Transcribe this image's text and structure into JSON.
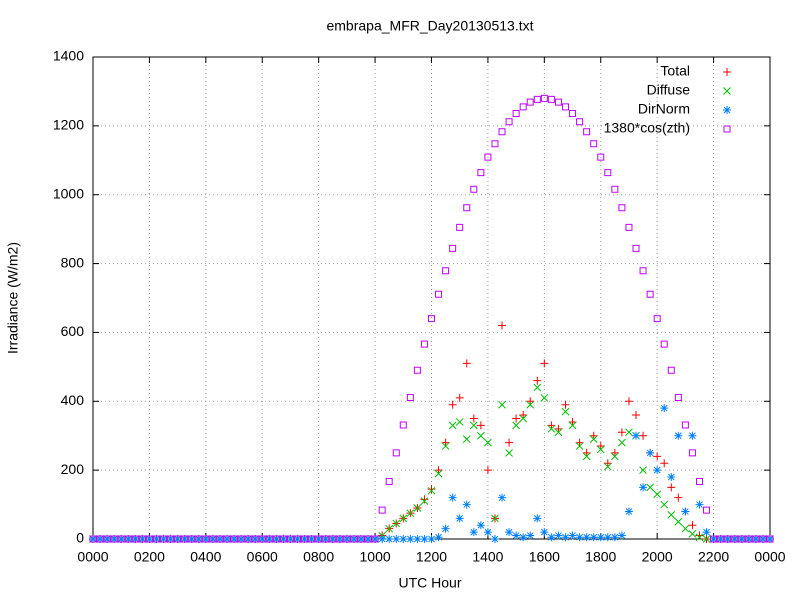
{
  "chart_data": {
    "type": "scatter",
    "title": "embrapa_MFR_Day20130513.txt",
    "x_label": "UTC Hour",
    "y_label": "Irradiance (W/m2)",
    "xlim": [
      0,
      24
    ],
    "ylim": [
      0,
      1400
    ],
    "xticks": [
      {
        "value": 0,
        "label": "0000"
      },
      {
        "value": 2,
        "label": "0200"
      },
      {
        "value": 4,
        "label": "0400"
      },
      {
        "value": 6,
        "label": "0600"
      },
      {
        "value": 8,
        "label": "0800"
      },
      {
        "value": 10,
        "label": "1000"
      },
      {
        "value": 12,
        "label": "1200"
      },
      {
        "value": 14,
        "label": "1400"
      },
      {
        "value": 16,
        "label": "1600"
      },
      {
        "value": 18,
        "label": "1800"
      },
      {
        "value": 20,
        "label": "2000"
      },
      {
        "value": 22,
        "label": "2200"
      },
      {
        "value": 24,
        "label": "0000"
      }
    ],
    "yticks": [
      0,
      200,
      400,
      600,
      800,
      1000,
      1200,
      1400
    ],
    "grid": true,
    "legend": "top-right",
    "x": [
      0,
      0.25,
      0.5,
      0.75,
      1,
      1.25,
      1.5,
      1.75,
      2,
      2.25,
      2.5,
      2.75,
      3,
      3.25,
      3.5,
      3.75,
      4,
      4.25,
      4.5,
      4.75,
      5,
      5.25,
      5.5,
      5.75,
      6,
      6.25,
      6.5,
      6.75,
      7,
      7.25,
      7.5,
      7.75,
      8,
      8.25,
      8.5,
      8.75,
      9,
      9.25,
      9.5,
      9.75,
      10,
      10.25,
      10.5,
      10.75,
      11,
      11.25,
      11.5,
      11.75,
      12,
      12.25,
      12.5,
      12.75,
      13,
      13.25,
      13.5,
      13.75,
      14,
      14.25,
      14.5,
      14.75,
      15,
      15.25,
      15.5,
      15.75,
      16,
      16.25,
      16.5,
      16.75,
      17,
      17.25,
      17.5,
      17.75,
      18,
      18.25,
      18.5,
      18.75,
      19,
      19.25,
      19.5,
      19.75,
      20,
      20.25,
      20.5,
      20.75,
      21,
      21.25,
      21.5,
      21.75,
      22,
      22.25,
      22.5,
      22.75,
      23,
      23.25,
      23.5,
      23.75,
      24
    ],
    "series": [
      {
        "name": "Total",
        "color": "#ff0000",
        "marker": "plus",
        "values": [
          0,
          0,
          0,
          0,
          0,
          0,
          0,
          0,
          0,
          0,
          0,
          0,
          0,
          0,
          0,
          0,
          0,
          0,
          0,
          0,
          0,
          0,
          0,
          0,
          0,
          0,
          0,
          0,
          0,
          0,
          0,
          0,
          0,
          0,
          0,
          0,
          0,
          0,
          0,
          0,
          0,
          10,
          30,
          45,
          60,
          75,
          90,
          115,
          145,
          200,
          280,
          390,
          410,
          510,
          350,
          330,
          200,
          60,
          620,
          280,
          350,
          360,
          400,
          460,
          510,
          330,
          320,
          390,
          340,
          280,
          250,
          300,
          270,
          220,
          250,
          310,
          400,
          360,
          300,
          250,
          240,
          220,
          150,
          120,
          80,
          40,
          10,
          0,
          0,
          0,
          0,
          0,
          0,
          0,
          0,
          0,
          0
        ]
      },
      {
        "name": "Diffuse",
        "color": "#00c000",
        "marker": "cross",
        "values": [
          0,
          0,
          0,
          0,
          0,
          0,
          0,
          0,
          0,
          0,
          0,
          0,
          0,
          0,
          0,
          0,
          0,
          0,
          0,
          0,
          0,
          0,
          0,
          0,
          0,
          0,
          0,
          0,
          0,
          0,
          0,
          0,
          0,
          0,
          0,
          0,
          0,
          0,
          0,
          0,
          0,
          10,
          30,
          45,
          60,
          75,
          90,
          110,
          140,
          190,
          270,
          330,
          340,
          290,
          330,
          300,
          280,
          60,
          390,
          250,
          330,
          350,
          390,
          440,
          410,
          320,
          310,
          370,
          330,
          270,
          240,
          290,
          260,
          210,
          240,
          280,
          310,
          300,
          200,
          150,
          130,
          100,
          70,
          50,
          30,
          15,
          5,
          0,
          0,
          0,
          0,
          0,
          0,
          0,
          0,
          0,
          0
        ]
      },
      {
        "name": "DirNorm",
        "color": "#0080ff",
        "marker": "star",
        "values": [
          0,
          0,
          0,
          0,
          0,
          0,
          0,
          0,
          0,
          0,
          0,
          0,
          0,
          0,
          0,
          0,
          0,
          0,
          0,
          0,
          0,
          0,
          0,
          0,
          0,
          0,
          0,
          0,
          0,
          0,
          0,
          0,
          0,
          0,
          0,
          0,
          0,
          0,
          0,
          0,
          0,
          0,
          0,
          0,
          0,
          0,
          0,
          0,
          0,
          5,
          30,
          120,
          60,
          100,
          20,
          40,
          20,
          0,
          120,
          20,
          10,
          5,
          10,
          60,
          20,
          5,
          10,
          5,
          10,
          5,
          5,
          5,
          5,
          5,
          5,
          10,
          80,
          300,
          150,
          250,
          200,
          380,
          180,
          300,
          80,
          300,
          100,
          20,
          0,
          0,
          0,
          0,
          0,
          0,
          0,
          0,
          0
        ]
      },
      {
        "name": "1380*cos(zth)",
        "color": "#c000ff",
        "marker": "square",
        "values": [
          0,
          0,
          0,
          0,
          0,
          0,
          0,
          0,
          0,
          0,
          0,
          0,
          0,
          0,
          0,
          0,
          0,
          0,
          0,
          0,
          0,
          0,
          0,
          0,
          0,
          0,
          0,
          0,
          0,
          0,
          0,
          0,
          0,
          0,
          0,
          0,
          0,
          0,
          0,
          0,
          0,
          84,
          167,
          250,
          331,
          411,
          490,
          566,
          640,
          711,
          779,
          844,
          905,
          962,
          1016,
          1064,
          1109,
          1148,
          1183,
          1212,
          1236,
          1255,
          1269,
          1277,
          1280,
          1277,
          1269,
          1255,
          1236,
          1212,
          1183,
          1148,
          1109,
          1064,
          1016,
          962,
          905,
          844,
          779,
          711,
          640,
          566,
          490,
          411,
          331,
          250,
          167,
          84,
          0,
          0,
          0,
          0,
          0,
          0,
          0,
          0,
          0
        ]
      }
    ]
  }
}
